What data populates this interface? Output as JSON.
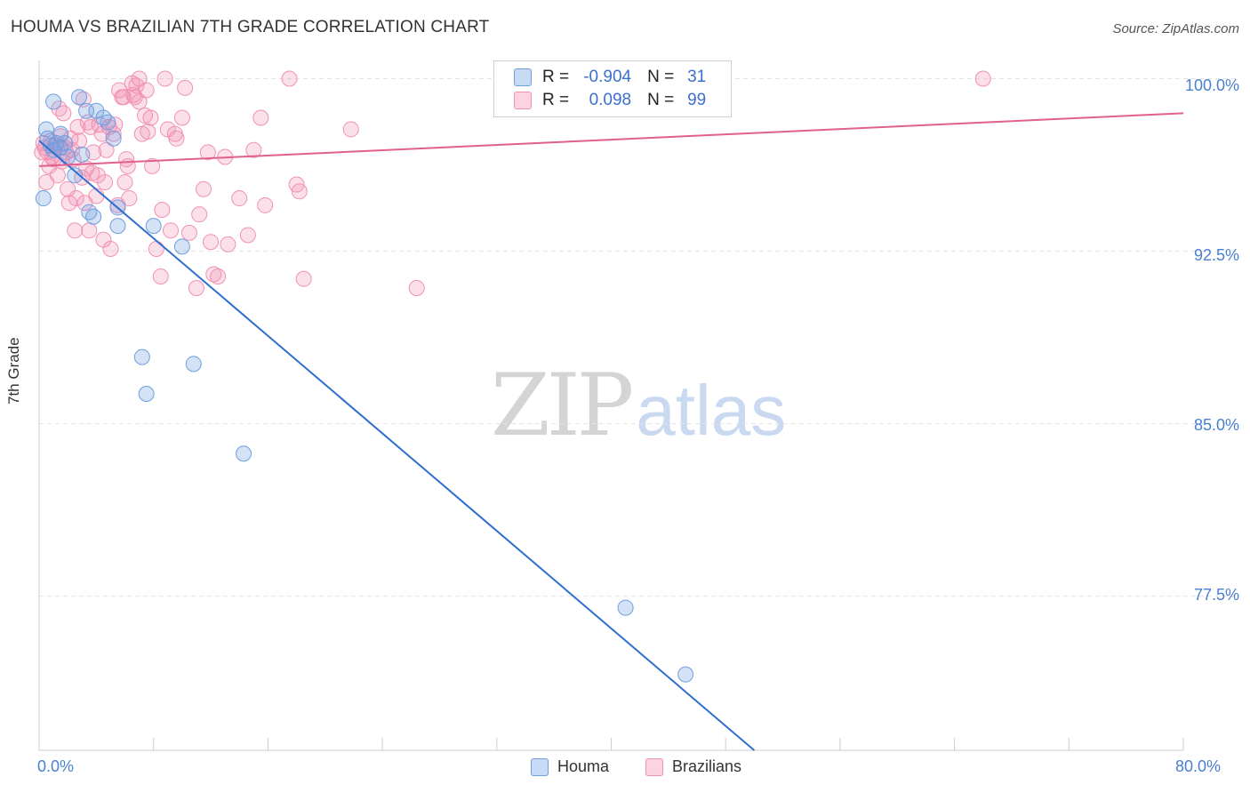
{
  "title": "HOUMA VS BRAZILIAN 7TH GRADE CORRELATION CHART",
  "source": "Source: ZipAtlas.com",
  "watermark": {
    "zip": "ZIP",
    "atlas": "atlas"
  },
  "legend": {
    "houma": {
      "r_label": "R =",
      "r_value": "-0.904",
      "n_label": "N =",
      "n_value": "31"
    },
    "brazilians": {
      "r_label": "R =",
      "r_value": "0.098",
      "n_label": "N =",
      "n_value": "99"
    }
  },
  "bottom_legend": {
    "houma": "Houma",
    "brazilians": "Brazilians"
  },
  "colors": {
    "houma": "#6f9fe0",
    "houma_line": "#2f6fd0",
    "brazilians": "#f191b2",
    "brazilians_line": "#e0608e",
    "tick": "#4a7fd0"
  },
  "chart_data": {
    "type": "scatter",
    "title": "HOUMA VS BRAZILIAN 7TH GRADE CORRELATION CHART",
    "xlabel": "",
    "ylabel": "7th Grade",
    "xlim": [
      0,
      80
    ],
    "ylim": [
      70.8,
      100.6
    ],
    "x_tick_labels": [
      "0.0%",
      "80.0%"
    ],
    "y_ticks": [
      100.0,
      92.5,
      85.0,
      77.5
    ],
    "y_tick_labels": [
      "100.0%",
      "92.5%",
      "85.0%",
      "77.5%"
    ],
    "series": [
      {
        "name": "Houma",
        "r": -0.904,
        "n": 31,
        "trend": {
          "x": [
            0.0,
            50.0
          ],
          "y": [
            97.3,
            70.8
          ]
        },
        "x": [
          0.3,
          0.6,
          0.8,
          1.0,
          1.2,
          1.5,
          1.8,
          2.0,
          2.5,
          3.0,
          3.3,
          3.5,
          4.5,
          4.8,
          5.2,
          5.5,
          0.5,
          1.5,
          3.8,
          4.0,
          2.8,
          5.5,
          8.0,
          10.0,
          7.2,
          7.5,
          10.8,
          14.3,
          41.0,
          45.2,
          1.0
        ],
        "y": [
          94.8,
          97.4,
          97.1,
          96.9,
          97.2,
          97.0,
          97.2,
          96.6,
          95.8,
          96.7,
          98.6,
          94.2,
          98.3,
          98.1,
          97.4,
          93.6,
          97.8,
          97.6,
          94.0,
          98.6,
          99.2,
          94.4,
          93.6,
          92.7,
          87.9,
          86.3,
          87.6,
          83.7,
          77.0,
          74.1,
          99.0
        ]
      },
      {
        "name": "Brazilians",
        "r": 0.098,
        "n": 99,
        "trend": {
          "x": [
            0.0,
            80.0
          ],
          "y": [
            96.2,
            98.5
          ]
        },
        "x": [
          0.2,
          0.4,
          0.5,
          0.7,
          0.8,
          1.0,
          1.2,
          1.3,
          1.5,
          1.6,
          1.8,
          2.0,
          2.1,
          2.3,
          2.5,
          2.6,
          2.8,
          3.0,
          3.1,
          3.3,
          3.5,
          3.6,
          3.8,
          4.0,
          4.2,
          4.4,
          4.5,
          4.7,
          5.0,
          5.2,
          5.5,
          5.6,
          5.8,
          6.0,
          6.2,
          6.3,
          6.5,
          6.7,
          7.0,
          7.2,
          7.5,
          7.8,
          8.2,
          8.5,
          9.0,
          9.5,
          10.0,
          10.5,
          11.0,
          11.5,
          12.0,
          12.5,
          13.0,
          14.0,
          15.0,
          15.5,
          17.5,
          18.0,
          18.2,
          10.2,
          11.8,
          8.8,
          6.6,
          7.0,
          7.4,
          9.6,
          3.2,
          3.7,
          4.6,
          5.3,
          2.4,
          1.1,
          1.9,
          2.7,
          4.1,
          5.9,
          6.8,
          7.9,
          0.9,
          1.4,
          2.2,
          3.4,
          4.9,
          6.1,
          7.6,
          8.6,
          9.2,
          11.2,
          12.2,
          13.2,
          14.6,
          15.8,
          18.5,
          21.8,
          26.4,
          66.0,
          0.3,
          0.6,
          1.7
        ],
        "y": [
          96.8,
          97.0,
          95.5,
          96.2,
          97.3,
          96.5,
          97.1,
          95.8,
          97.5,
          96.4,
          97.0,
          95.2,
          94.6,
          96.9,
          93.4,
          94.8,
          97.3,
          95.7,
          99.1,
          96.1,
          93.4,
          97.9,
          96.8,
          94.9,
          98.0,
          97.6,
          93.0,
          96.9,
          92.6,
          97.6,
          94.5,
          99.5,
          99.2,
          95.5,
          96.2,
          94.8,
          99.8,
          99.2,
          100.0,
          97.6,
          99.5,
          98.3,
          92.6,
          91.4,
          97.8,
          97.6,
          98.3,
          93.3,
          90.9,
          95.2,
          92.9,
          91.4,
          96.6,
          94.8,
          96.9,
          98.3,
          100.0,
          95.4,
          95.1,
          99.6,
          96.8,
          100.0,
          99.3,
          99.0,
          98.4,
          97.4,
          94.6,
          95.9,
          95.5,
          98.0,
          96.5,
          97.1,
          96.8,
          97.9,
          95.8,
          99.2,
          99.7,
          96.2,
          96.6,
          98.7,
          97.4,
          98.1,
          97.9,
          96.5,
          97.7,
          94.3,
          93.4,
          94.1,
          91.5,
          92.8,
          93.2,
          94.5,
          91.3,
          97.8,
          90.9,
          100.0,
          97.2,
          96.8,
          98.5
        ]
      }
    ]
  }
}
